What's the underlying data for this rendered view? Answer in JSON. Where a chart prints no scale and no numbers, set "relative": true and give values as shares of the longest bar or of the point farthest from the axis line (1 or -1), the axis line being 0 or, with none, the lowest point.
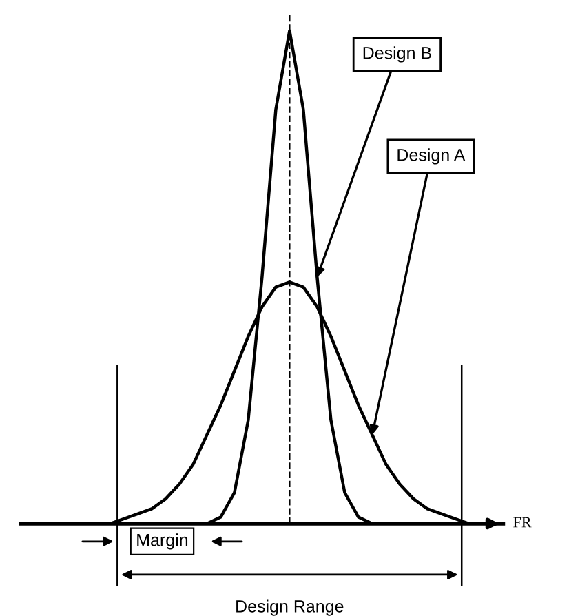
{
  "chart_data": {
    "type": "line",
    "relative": true,
    "xlabel": "FR",
    "categories": [
      null,
      null,
      null,
      null,
      null,
      null,
      null,
      null,
      null,
      null,
      null,
      null,
      null,
      null,
      null,
      null,
      null,
      null,
      null,
      null,
      null,
      null,
      null,
      null,
      null,
      null,
      null
    ],
    "series": [
      {
        "name": "Design B",
        "color": "#000000",
        "values": [
          0,
          0,
          0,
          0,
          0,
          0,
          0,
          0,
          0.013,
          0.063,
          0.21,
          0.5,
          0.84,
          1,
          0.84,
          0.5,
          0.21,
          0.063,
          0.013,
          0,
          0,
          0,
          0,
          0,
          0,
          0,
          0
        ]
      },
      {
        "name": "Design A",
        "color": "#000000",
        "values": [
          0,
          0.01,
          0.02,
          0.03,
          0.05,
          0.08,
          0.12,
          0.18,
          0.24,
          0.31,
          0.38,
          0.44,
          0.48,
          0.49,
          0.48,
          0.44,
          0.38,
          0.31,
          0.24,
          0.18,
          0.12,
          0.08,
          0.05,
          0.03,
          0.02,
          0.01,
          0
        ]
      }
    ],
    "annotations": [
      "Margin",
      "Design Range"
    ],
    "marker": "none",
    "line_style": "solid"
  }
}
